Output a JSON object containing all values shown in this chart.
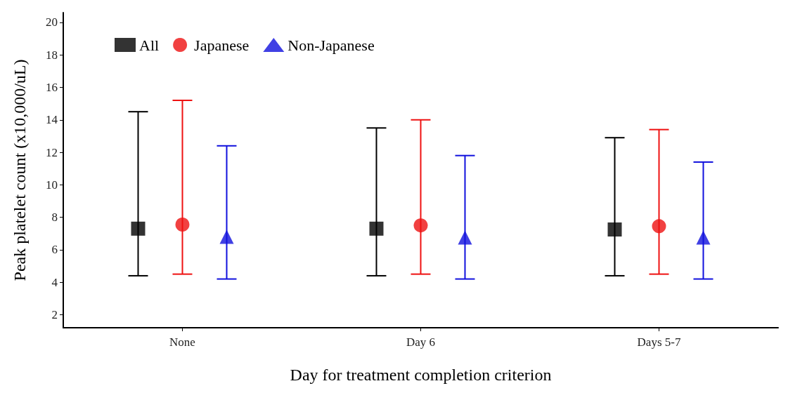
{
  "chart_data": {
    "type": "scatter",
    "xlabel": "Day for treatment completion criterion",
    "ylabel": "Peak platelet count (x10,000/uL)",
    "categories": [
      "None",
      "Day 6",
      "Days 5-7"
    ],
    "series": [
      {
        "name": "All",
        "color": "#000000",
        "marker": "square",
        "values": [
          7.3,
          7.3,
          7.25
        ],
        "errors": [
          [
            4.4,
            14.5
          ],
          [
            4.4,
            13.5
          ],
          [
            4.4,
            12.9
          ]
        ]
      },
      {
        "name": "Japanese",
        "color": "#ee1111",
        "marker": "circle",
        "values": [
          7.55,
          7.5,
          7.45
        ],
        "errors": [
          [
            4.5,
            15.2
          ],
          [
            4.5,
            14.0
          ],
          [
            4.5,
            13.4
          ]
        ]
      },
      {
        "name": "Non-Japanese",
        "color": "#1010dd",
        "marker": "triangle",
        "values": [
          6.8,
          6.75,
          6.75
        ],
        "errors": [
          [
            4.2,
            12.4
          ],
          [
            4.2,
            11.8
          ],
          [
            4.2,
            11.4
          ]
        ]
      }
    ],
    "ylim": [
      1.2,
      20.6
    ],
    "yticks": [
      2,
      4,
      6,
      8,
      10,
      12,
      14,
      16,
      18,
      20
    ],
    "grid": false,
    "legend": "top left"
  }
}
